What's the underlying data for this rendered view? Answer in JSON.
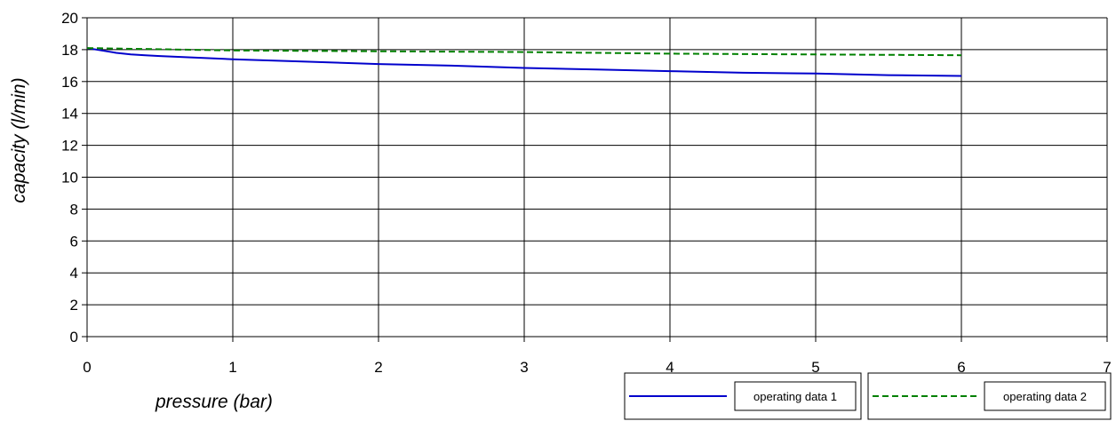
{
  "chart_data": {
    "type": "line",
    "title": "",
    "xlabel": "pressure (bar)",
    "ylabel": "capacity (l/min)",
    "xlim": [
      0,
      7
    ],
    "ylim": [
      0,
      20
    ],
    "xticks": [
      0,
      1,
      2,
      3,
      4,
      5,
      6,
      7
    ],
    "yticks": [
      0,
      2,
      4,
      6,
      8,
      10,
      12,
      14,
      16,
      18,
      20
    ],
    "grid": true,
    "legend_position": "bottom-right",
    "series": [
      {
        "name": "operating data 1",
        "color": "#0000cc",
        "style": "solid",
        "x": [
          0,
          0.1,
          0.2,
          0.3,
          0.4,
          0.5,
          1,
          1.5,
          2,
          2.5,
          3,
          3.5,
          4,
          4.5,
          5,
          5.5,
          6
        ],
        "y": [
          18.1,
          17.95,
          17.8,
          17.7,
          17.65,
          17.6,
          17.4,
          17.25,
          17.1,
          17.0,
          16.85,
          16.75,
          16.65,
          16.55,
          16.5,
          16.4,
          16.35
        ]
      },
      {
        "name": "operating data 2",
        "color": "#008000",
        "style": "dashed",
        "x": [
          0,
          1,
          2,
          3,
          4,
          5,
          6
        ],
        "y": [
          18.1,
          17.95,
          17.9,
          17.85,
          17.75,
          17.7,
          17.65
        ]
      }
    ]
  }
}
